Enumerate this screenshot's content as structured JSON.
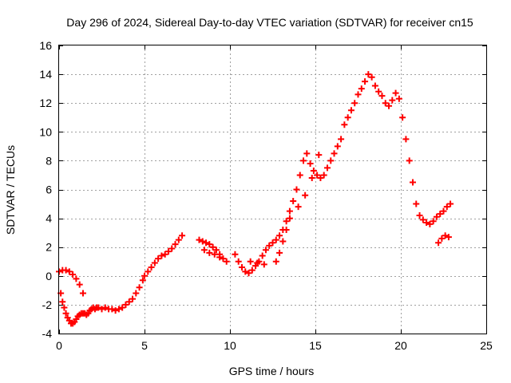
{
  "chart_data": {
    "type": "scatter",
    "title": "Day 296 of 2024, Sidereal Day-to-day VTEC variation (SDTVAR) for receiver cn15",
    "xlabel": "GPS time / hours",
    "ylabel": "SDTVAR / TECUs",
    "xlim": [
      0,
      25
    ],
    "ylim": [
      -4,
      16
    ],
    "grid": true,
    "marker": "+",
    "color": "#ff0000",
    "xticks": [
      0,
      5,
      10,
      15,
      20,
      25
    ],
    "yticks": [
      -4,
      -2,
      0,
      2,
      4,
      6,
      8,
      10,
      12,
      14,
      16
    ],
    "xtick_labels": [
      "0",
      "5",
      "10",
      "15",
      "20",
      "25"
    ],
    "ytick_labels": [
      "-4",
      "-2",
      "0",
      "2",
      "4",
      "6",
      "8",
      "10",
      "12",
      "14",
      "16"
    ],
    "series": [
      {
        "name": "SDTVAR",
        "x": [
          0.0,
          0.1,
          0.2,
          0.3,
          0.4,
          0.5,
          0.6,
          0.7,
          0.8,
          0.9,
          1.0,
          1.1,
          1.2,
          1.3,
          1.4,
          1.5,
          1.6,
          1.7,
          1.8,
          1.9,
          2.0,
          2.1,
          2.2,
          2.3,
          2.5,
          2.7,
          2.9,
          3.1,
          3.3,
          3.5,
          3.7,
          3.9,
          4.1,
          4.3,
          4.5,
          4.7,
          4.9,
          5.0,
          5.2,
          5.4,
          5.6,
          5.8,
          6.0,
          6.2,
          6.4,
          6.6,
          6.8,
          7.0,
          7.2,
          8.2,
          8.4,
          8.6,
          8.8,
          9.0,
          9.2,
          9.4,
          9.6,
          9.8,
          10.3,
          10.5,
          10.7,
          10.9,
          11.1,
          11.3,
          11.5,
          11.7,
          11.9,
          12.1,
          12.3,
          12.5,
          12.7,
          12.9,
          13.1,
          13.3,
          13.5,
          13.7,
          13.9,
          14.1,
          14.3,
          14.5,
          14.7,
          14.9,
          15.1,
          15.3,
          15.5,
          15.7,
          15.9,
          16.1,
          16.3,
          16.5,
          16.7,
          16.9,
          17.1,
          17.3,
          17.5,
          17.7,
          17.9,
          18.1,
          18.3,
          18.5,
          18.7,
          18.9,
          19.1,
          19.3,
          19.5,
          19.7,
          19.9,
          20.1,
          20.3,
          20.5,
          20.7,
          20.9,
          21.1,
          21.3,
          21.5,
          21.7,
          21.9,
          22.1,
          22.3,
          22.5,
          22.7,
          22.9,
          0.2,
          0.4,
          0.6,
          0.8,
          1.0,
          1.2,
          1.4,
          12.7,
          12.9,
          13.1,
          13.3,
          13.5,
          14.0,
          14.4,
          14.8,
          15.2,
          22.2,
          22.4,
          22.6,
          22.8,
          8.5,
          8.8,
          9.1,
          9.4,
          11.2,
          11.6,
          12.0
        ],
        "y": [
          0.3,
          -1.2,
          -1.8,
          -2.2,
          -2.6,
          -2.9,
          -3.1,
          -3.3,
          -3.3,
          -3.2,
          -3.0,
          -2.8,
          -2.7,
          -2.6,
          -2.6,
          -2.6,
          -2.7,
          -2.6,
          -2.4,
          -2.3,
          -2.2,
          -2.3,
          -2.2,
          -2.2,
          -2.3,
          -2.2,
          -2.3,
          -2.3,
          -2.4,
          -2.3,
          -2.2,
          -2.0,
          -1.8,
          -1.6,
          -1.2,
          -0.8,
          -0.3,
          0.0,
          0.3,
          0.6,
          0.9,
          1.2,
          1.4,
          1.5,
          1.7,
          1.9,
          2.2,
          2.5,
          2.8,
          2.5,
          2.4,
          2.3,
          2.2,
          2.0,
          1.8,
          1.5,
          1.2,
          1.0,
          1.5,
          1.0,
          0.6,
          0.3,
          0.2,
          0.4,
          0.7,
          1.0,
          1.4,
          1.8,
          2.1,
          2.3,
          2.5,
          2.8,
          3.2,
          3.8,
          4.5,
          5.2,
          6.0,
          7.0,
          8.0,
          8.5,
          7.8,
          7.3,
          7.0,
          6.8,
          7.0,
          7.5,
          8.0,
          8.5,
          9.0,
          9.5,
          10.5,
          11.0,
          11.5,
          12.0,
          12.6,
          13.0,
          13.5,
          14.0,
          13.8,
          13.2,
          12.8,
          12.5,
          12.0,
          11.8,
          12.2,
          12.7,
          12.3,
          11.0,
          9.5,
          8.0,
          6.5,
          5.0,
          4.2,
          3.9,
          3.7,
          3.6,
          3.8,
          4.1,
          4.3,
          4.5,
          4.8,
          5.0,
          0.4,
          0.4,
          0.3,
          0.1,
          -0.2,
          -0.6,
          -1.2,
          1.0,
          1.6,
          2.4,
          3.2,
          4.0,
          4.8,
          5.6,
          6.8,
          8.4,
          2.3,
          2.6,
          2.8,
          2.7,
          1.8,
          1.6,
          1.5,
          1.3,
          1.0,
          0.9,
          0.8
        ]
      }
    ]
  }
}
